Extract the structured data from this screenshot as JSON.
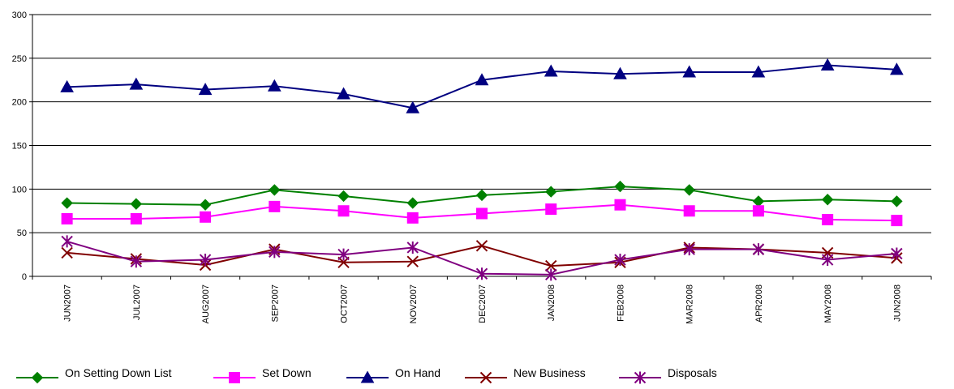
{
  "chart_data": {
    "type": "line",
    "title": "",
    "xlabel": "",
    "ylabel": "",
    "ylim": [
      0,
      300
    ],
    "yticks": [
      0,
      50,
      100,
      150,
      200,
      250,
      300
    ],
    "grid": true,
    "legend_position": "bottom",
    "categories": [
      "JUN2007",
      "JUL2007",
      "AUG2007",
      "SEP2007",
      "OCT2007",
      "NOV2007",
      "DEC2007",
      "JAN2008",
      "FEB2008",
      "MAR2008",
      "APR2008",
      "MAY2008",
      "JUN2008"
    ],
    "series": [
      {
        "name": "On Setting Down List",
        "color": "#008000",
        "marker": "diamond",
        "values": [
          84,
          83,
          82,
          99,
          92,
          84,
          93,
          97,
          103,
          99,
          86,
          88,
          86
        ]
      },
      {
        "name": "Set Down",
        "color": "#FF00FF",
        "marker": "square",
        "values": [
          66,
          66,
          68,
          80,
          75,
          67,
          72,
          77,
          82,
          75,
          75,
          65,
          64
        ]
      },
      {
        "name": "On Hand",
        "color": "#000080",
        "marker": "triangle",
        "values": [
          217,
          220,
          214,
          218,
          209,
          193,
          225,
          235,
          232,
          234,
          234,
          242,
          237
        ]
      },
      {
        "name": "New Business",
        "color": "#800000",
        "marker": "x",
        "values": [
          27,
          20,
          13,
          31,
          16,
          17,
          35,
          12,
          16,
          33,
          31,
          27,
          21
        ]
      },
      {
        "name": "Disposals",
        "color": "#800080",
        "marker": "asterisk",
        "values": [
          40,
          17,
          19,
          28,
          25,
          33,
          3,
          2,
          19,
          31,
          31,
          19,
          26
        ]
      }
    ]
  }
}
